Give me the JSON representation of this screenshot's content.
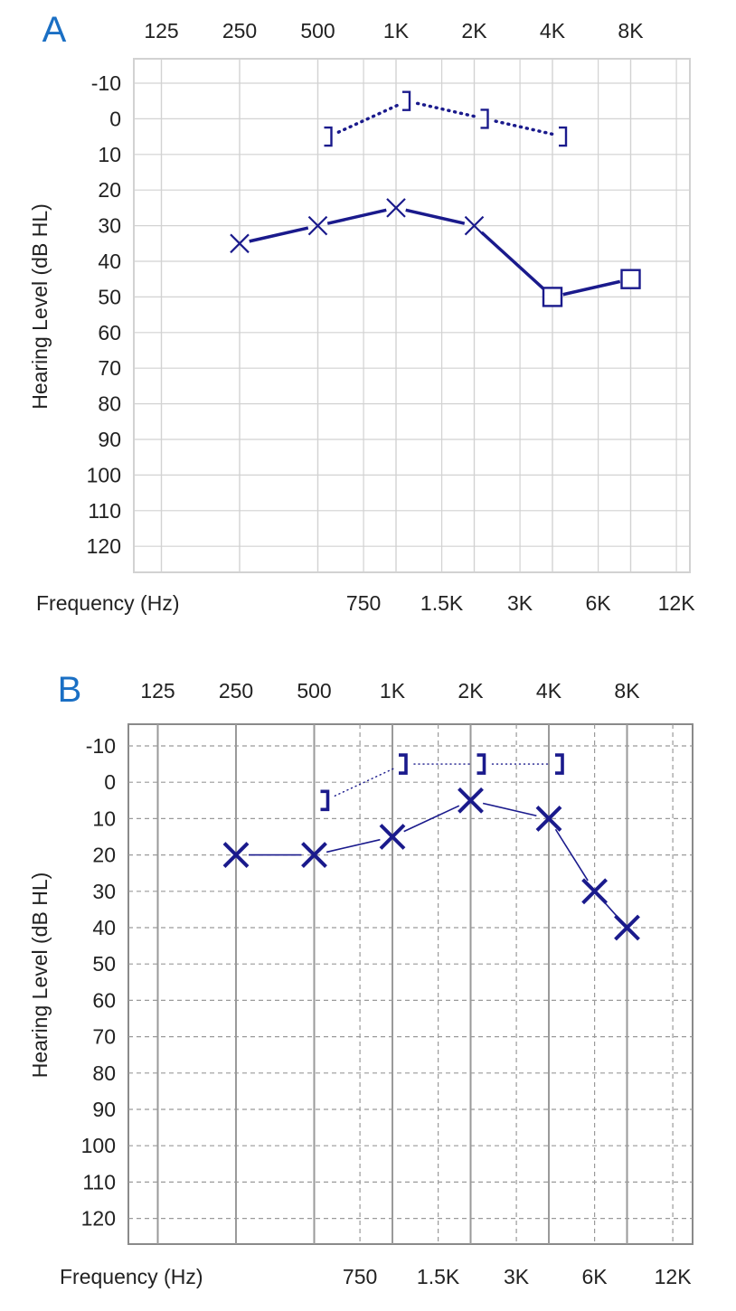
{
  "chart_data": [
    {
      "type": "line",
      "panel_label": "A",
      "xlabel": "Frequency (Hz)",
      "ylabel": "Hearing Level (dB HL)",
      "x_scale": "log2",
      "x_top_ticks": [
        "125",
        "250",
        "500",
        "1K",
        "2K",
        "4K",
        "8K"
      ],
      "x_bottom_ticks": [
        "750",
        "1.5K",
        "3K",
        "6K",
        "12K"
      ],
      "y_ticks": [
        "-10",
        "0",
        "10",
        "20",
        "30",
        "40",
        "50",
        "60",
        "70",
        "80",
        "90",
        "100",
        "110",
        "120"
      ],
      "ylim": [
        -15,
        125
      ],
      "y_inverted": true,
      "grid": "solid",
      "series": [
        {
          "style": "dotted",
          "points": [
            {
              "x": 500,
              "y": 5,
              "marker": "bracket"
            },
            {
              "x": 1000,
              "y": -5,
              "marker": "bracket"
            },
            {
              "x": 2000,
              "y": 0,
              "marker": "bracket"
            },
            {
              "x": 4000,
              "y": 5,
              "marker": "bracket"
            }
          ]
        },
        {
          "style": "solid",
          "points": [
            {
              "x": 250,
              "y": 35,
              "marker": "x"
            },
            {
              "x": 500,
              "y": 30,
              "marker": "x"
            },
            {
              "x": 1000,
              "y": 25,
              "marker": "x"
            },
            {
              "x": 2000,
              "y": 30,
              "marker": "x"
            },
            {
              "x": 4000,
              "y": 50,
              "marker": "square"
            },
            {
              "x": 8000,
              "y": 45,
              "marker": "square"
            }
          ]
        }
      ]
    },
    {
      "type": "line",
      "panel_label": "B",
      "xlabel": "Frequency (Hz)",
      "ylabel": "Hearing Level (dB HL)",
      "x_scale": "log2",
      "x_top_ticks": [
        "125",
        "250",
        "500",
        "1K",
        "2K",
        "4K",
        "8K"
      ],
      "x_bottom_ticks": [
        "750",
        "1.5K",
        "3K",
        "6K",
        "12K"
      ],
      "y_ticks": [
        "-10",
        "0",
        "10",
        "20",
        "30",
        "40",
        "50",
        "60",
        "70",
        "80",
        "90",
        "100",
        "110",
        "120"
      ],
      "ylim": [
        -15,
        125
      ],
      "y_inverted": true,
      "grid": "dashed",
      "series": [
        {
          "style": "dotted",
          "points": [
            {
              "x": 500,
              "y": 5,
              "marker": "bracket"
            },
            {
              "x": 1000,
              "y": -5,
              "marker": "bracket"
            },
            {
              "x": 2000,
              "y": -5,
              "marker": "bracket"
            },
            {
              "x": 4000,
              "y": -5,
              "marker": "bracket"
            }
          ]
        },
        {
          "style": "solid",
          "points": [
            {
              "x": 250,
              "y": 20,
              "marker": "x"
            },
            {
              "x": 500,
              "y": 20,
              "marker": "x"
            },
            {
              "x": 1000,
              "y": 15,
              "marker": "x"
            },
            {
              "x": 2000,
              "y": 5,
              "marker": "x"
            },
            {
              "x": 4000,
              "y": 10,
              "marker": "x"
            },
            {
              "x": 6000,
              "y": 30,
              "marker": "x"
            },
            {
              "x": 8000,
              "y": 40,
              "marker": "x"
            }
          ]
        }
      ]
    }
  ],
  "colors": {
    "data": "#1a1a8c",
    "panel_letter": "#1a6fc4",
    "grid": "#c8c8c8",
    "text": "#222222"
  }
}
